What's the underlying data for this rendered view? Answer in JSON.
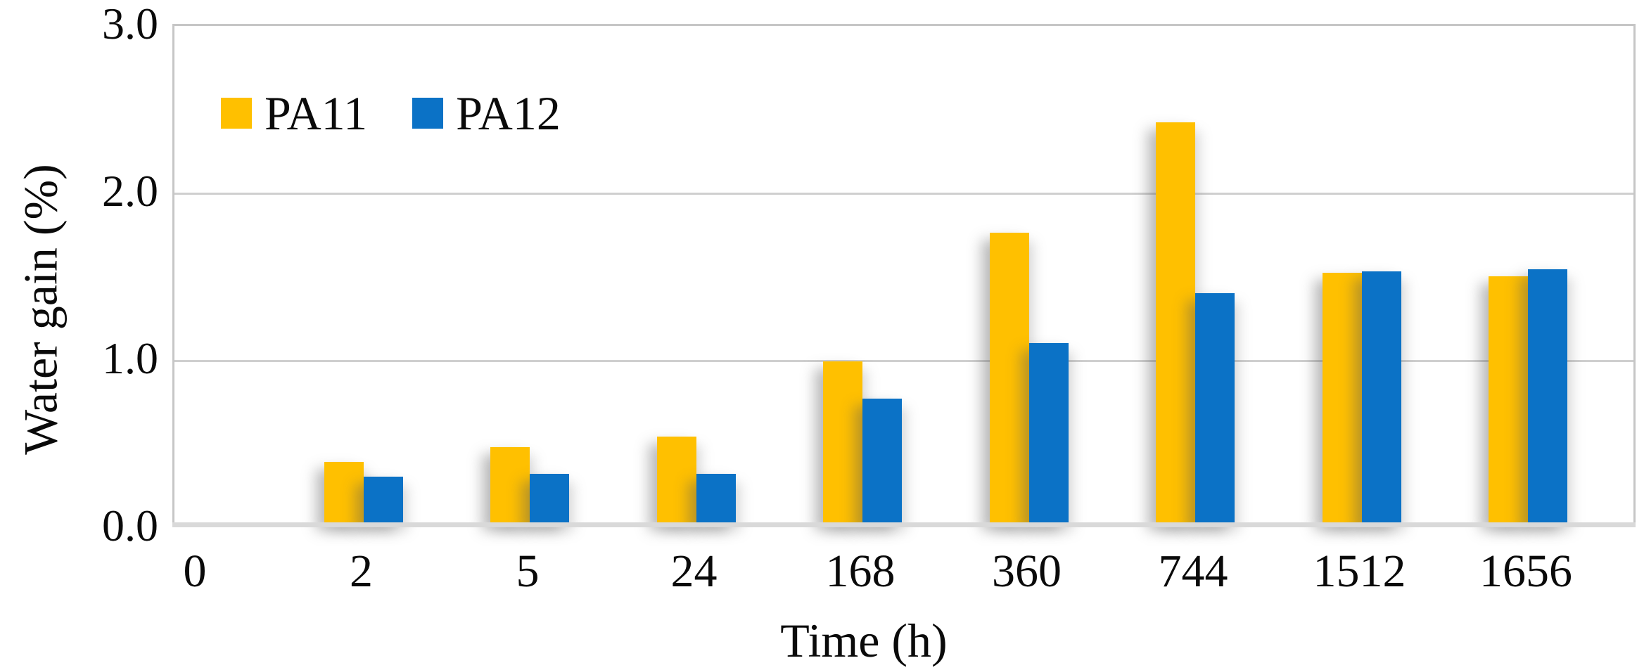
{
  "chart_data": {
    "type": "bar",
    "title": "",
    "xlabel": "Time (h)",
    "ylabel": "Water gain (%)",
    "categories": [
      "0",
      "2",
      "5",
      "24",
      "168",
      "360",
      "744",
      "1512",
      "1656"
    ],
    "series": [
      {
        "name": "PA11",
        "color": "#FFC000",
        "values": [
          0,
          0.37,
          0.46,
          0.52,
          0.97,
          1.74,
          2.4,
          1.5,
          1.48
        ]
      },
      {
        "name": "PA12",
        "color": "#0B72C6",
        "values": [
          0,
          0.28,
          0.3,
          0.3,
          0.75,
          1.08,
          1.38,
          1.51,
          1.52
        ]
      }
    ],
    "ylim": [
      0,
      3.0
    ],
    "y_ticks": [
      {
        "label": "3.0",
        "value": 3.0
      },
      {
        "label": "2.0",
        "value": 2.0
      },
      {
        "label": "1.0",
        "value": 1.0
      },
      {
        "label": "0.0",
        "value": 0.0
      }
    ],
    "grid": "horizontal",
    "legend_position": "inside-top-left"
  },
  "colors": {
    "plot_border": "#c6c6c6",
    "gridline": "#cfcfcf",
    "baseline": "#d9d9d9",
    "text": "#0a0a0a",
    "background": "#ffffff"
  }
}
